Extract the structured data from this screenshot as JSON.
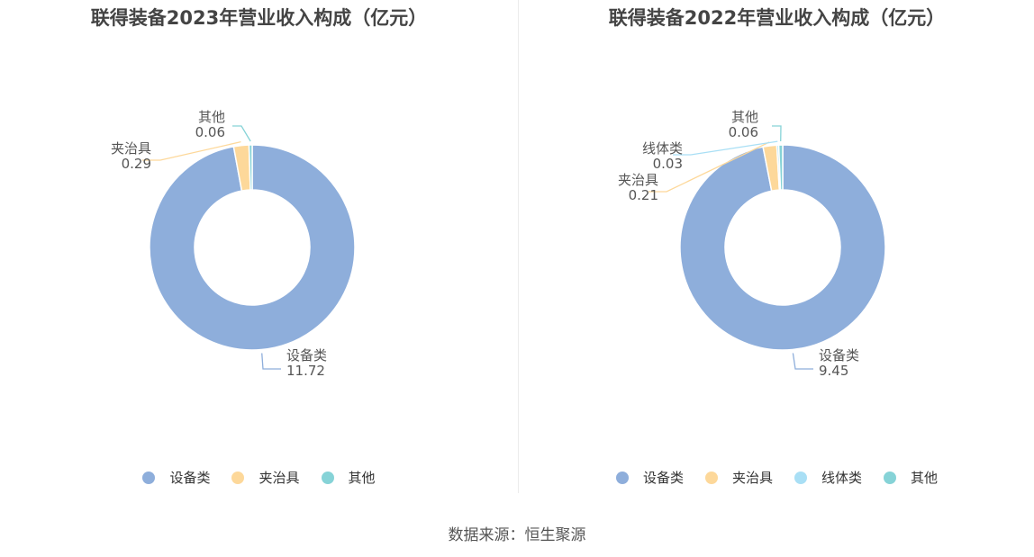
{
  "source_label": "数据来源：恒生聚源",
  "chart_data": [
    {
      "type": "pie",
      "title": "联得装备2023年营业收入构成（亿元）",
      "slices": [
        {
          "label": "设备类",
          "value": 11.72,
          "value_text": "11.72",
          "color": "#8eaedb"
        },
        {
          "label": "夹治具",
          "value": 0.29,
          "value_text": "0.29",
          "color": "#fdd89a"
        },
        {
          "label": "其他",
          "value": 0.06,
          "value_text": "0.06",
          "color": "#86d3d7"
        }
      ]
    },
    {
      "type": "pie",
      "title": "联得装备2022年营业收入构成（亿元）",
      "slices": [
        {
          "label": "设备类",
          "value": 9.45,
          "value_text": "9.45",
          "color": "#8eaedb"
        },
        {
          "label": "夹治具",
          "value": 0.21,
          "value_text": "0.21",
          "color": "#fdd89a"
        },
        {
          "label": "线体类",
          "value": 0.03,
          "value_text": "0.03",
          "color": "#a9dff5"
        },
        {
          "label": "其他",
          "value": 0.06,
          "value_text": "0.06",
          "color": "#86d3d7"
        }
      ]
    }
  ]
}
